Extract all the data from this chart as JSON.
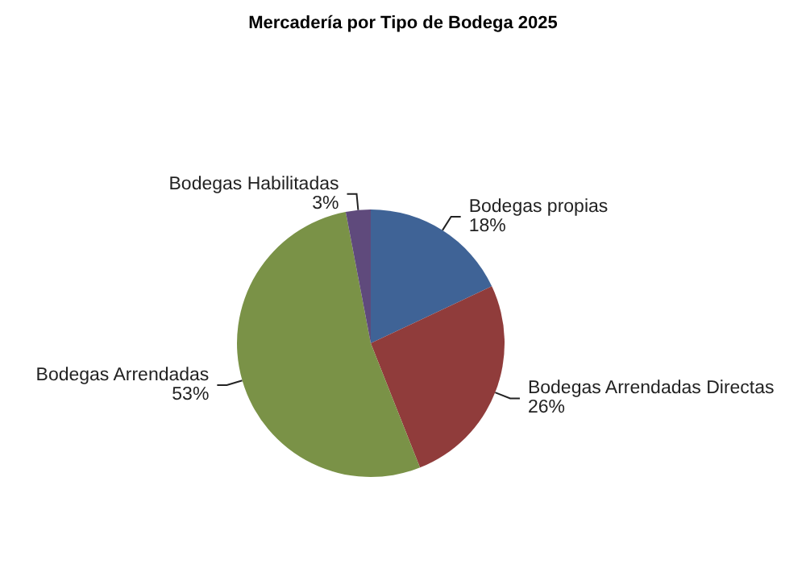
{
  "chart_data": {
    "type": "pie",
    "title": "Mercadería por Tipo de Bodega 2025",
    "categories": [
      "Bodegas propias",
      "Bodegas Arrendadas Directas",
      "Bodegas Arrendadas",
      "Bodegas Habilitadas"
    ],
    "values": [
      18,
      26,
      53,
      3
    ],
    "colors": [
      "#3f6396",
      "#903c3b",
      "#7a9247",
      "#5f4a7c"
    ],
    "value_labels": [
      "18%",
      "26%",
      "53%",
      "3%"
    ],
    "legend": false
  }
}
